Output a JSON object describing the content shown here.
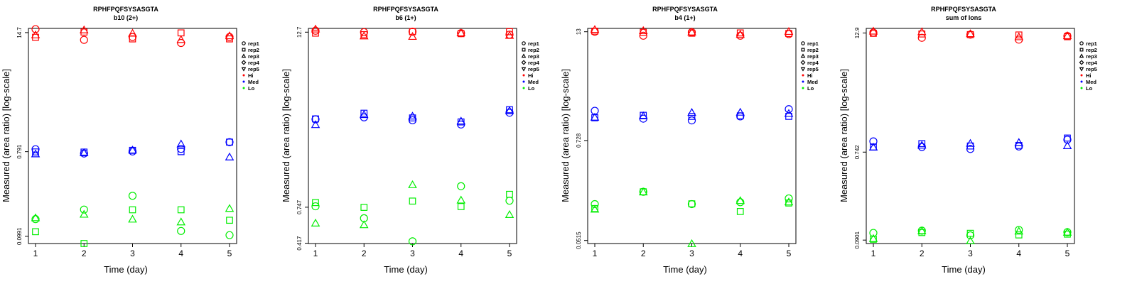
{
  "colors": {
    "Hi": "#ff0000",
    "Med": "#0000ff",
    "Lo": "#00ee00"
  },
  "chart_data": [
    {
      "type": "scatter",
      "title": "RPHFPQFSYSASGTA",
      "subtitle": "b10 (2+)",
      "xlabel": "Time (day)",
      "ylabel": "Measured (area ratio) [log-scale]",
      "x_ticks": [
        "1",
        "2",
        "3",
        "4",
        "5"
      ],
      "y_ticks": [
        "0.0991",
        "0.791",
        "14.7"
      ],
      "ylim": [
        0.083,
        16.3
      ],
      "legend": [
        "rep1",
        "rep2",
        "rep3",
        "rep4",
        "rep5",
        "Hi",
        "Med",
        "Lo"
      ],
      "series": [
        {
          "level": "Hi",
          "rep": "rep1",
          "points": [
            [
              1,
              16.0
            ],
            [
              2,
              12.3
            ],
            [
              3,
              13.2
            ],
            [
              4,
              11.4
            ],
            [
              5,
              13.2
            ]
          ]
        },
        {
          "level": "Hi",
          "rep": "rep2",
          "points": [
            [
              1,
              13.1
            ],
            [
              2,
              14.9
            ],
            [
              3,
              12.6
            ],
            [
              4,
              14.6
            ],
            [
              5,
              12.6
            ]
          ]
        },
        {
          "level": "Hi",
          "rep": "rep3",
          "points": [
            [
              1,
              13.8
            ],
            [
              2,
              15.6
            ],
            [
              3,
              14.4
            ],
            [
              4,
              12.3
            ],
            [
              5,
              13.5
            ]
          ]
        },
        {
          "level": "Med",
          "rep": "rep1",
          "points": [
            [
              1,
              0.84
            ],
            [
              2,
              0.756
            ],
            [
              3,
              0.795
            ],
            [
              4,
              0.847
            ],
            [
              5,
              1.0
            ]
          ]
        },
        {
          "level": "Med",
          "rep": "rep2",
          "points": [
            [
              1,
              0.786
            ],
            [
              2,
              0.783
            ],
            [
              3,
              0.817
            ],
            [
              4,
              0.791
            ],
            [
              5,
              1.0
            ]
          ]
        },
        {
          "level": "Med",
          "rep": "rep3",
          "points": [
            [
              1,
              0.744
            ],
            [
              2,
              0.765
            ],
            [
              3,
              0.818
            ],
            [
              4,
              0.95
            ],
            [
              5,
              0.69
            ]
          ]
        },
        {
          "level": "Lo",
          "rep": "rep1",
          "points": [
            [
              1,
              0.151
            ],
            [
              2,
              0.191
            ],
            [
              3,
              0.268
            ],
            [
              4,
              0.113
            ],
            [
              5,
              0.102
            ]
          ]
        },
        {
          "level": "Lo",
          "rep": "rep2",
          "points": [
            [
              1,
              0.111
            ],
            [
              2,
              0.083
            ],
            [
              3,
              0.19
            ],
            [
              4,
              0.19
            ],
            [
              5,
              0.147
            ]
          ]
        },
        {
          "level": "Lo",
          "rep": "rep3",
          "points": [
            [
              1,
              0.155
            ],
            [
              2,
              0.169
            ],
            [
              3,
              0.15
            ],
            [
              4,
              0.14
            ],
            [
              5,
              0.195
            ]
          ]
        }
      ]
    },
    {
      "type": "scatter",
      "title": "RPHFPQFSYSASGTA",
      "subtitle": "b6 (1+)",
      "xlabel": "Time (day)",
      "ylabel": "Measured (area ratio) [log-scale]",
      "x_ticks": [
        "1",
        "2",
        "3",
        "4",
        "5"
      ],
      "y_ticks": [
        "0.417",
        "0.747",
        "12.7"
      ],
      "ylim": [
        0.415,
        13.5
      ],
      "legend": [
        "rep1",
        "rep2",
        "rep3",
        "rep4",
        "rep5",
        "Hi",
        "Med",
        "Lo"
      ],
      "series": [
        {
          "level": "Hi",
          "rep": "rep1",
          "points": [
            [
              1,
              13.0
            ],
            [
              2,
              12.7
            ],
            [
              3,
              12.8
            ],
            [
              4,
              12.5
            ],
            [
              5,
              12.2
            ]
          ]
        },
        {
          "level": "Hi",
          "rep": "rep2",
          "points": [
            [
              1,
              12.5
            ],
            [
              2,
              12.2
            ],
            [
              3,
              12.8
            ],
            [
              4,
              12.4
            ],
            [
              5,
              12.8
            ]
          ]
        },
        {
          "level": "Hi",
          "rep": "rep3",
          "points": [
            [
              1,
              13.3
            ],
            [
              2,
              11.9
            ],
            [
              3,
              11.8
            ],
            [
              4,
              12.5
            ],
            [
              5,
              12.0
            ]
          ]
        },
        {
          "level": "Med",
          "rep": "rep1",
          "points": [
            [
              1,
              3.1
            ],
            [
              2,
              3.2
            ],
            [
              3,
              3.05
            ],
            [
              4,
              2.85
            ],
            [
              5,
              3.45
            ]
          ]
        },
        {
          "level": "Med",
          "rep": "rep2",
          "points": [
            [
              1,
              3.12
            ],
            [
              2,
              3.42
            ],
            [
              3,
              3.17
            ],
            [
              4,
              2.97
            ],
            [
              5,
              3.62
            ]
          ]
        },
        {
          "level": "Med",
          "rep": "rep3",
          "points": [
            [
              1,
              2.83
            ],
            [
              2,
              3.33
            ],
            [
              3,
              3.25
            ],
            [
              4,
              3.0
            ],
            [
              5,
              3.55
            ]
          ]
        },
        {
          "level": "Lo",
          "rep": "rep1",
          "points": [
            [
              1,
              0.758
            ],
            [
              2,
              0.625
            ],
            [
              3,
              0.43
            ],
            [
              4,
              1.05
            ],
            [
              5,
              0.83
            ]
          ]
        },
        {
          "level": "Lo",
          "rep": "rep2",
          "points": [
            [
              1,
              0.805
            ],
            [
              2,
              0.745
            ],
            [
              3,
              0.825
            ],
            [
              4,
              0.755
            ],
            [
              5,
              0.92
            ]
          ]
        },
        {
          "level": "Lo",
          "rep": "rep3",
          "points": [
            [
              1,
              0.575
            ],
            [
              2,
              0.56
            ],
            [
              3,
              1.07
            ],
            [
              4,
              0.835
            ],
            [
              5,
              0.66
            ]
          ]
        }
      ]
    },
    {
      "type": "scatter",
      "title": "RPHFPQFSYSASGTA",
      "subtitle": "b4 (1+)",
      "xlabel": "Time (day)",
      "ylabel": "Measured (area ratio) [log-scale]",
      "x_ticks": [
        "1",
        "2",
        "3",
        "4",
        "5"
      ],
      "y_ticks": [
        "0.0515",
        "0.728",
        "13"
      ],
      "ylim": [
        0.0475,
        14.2
      ],
      "legend": [
        "rep1",
        "rep2",
        "rep3",
        "rep4",
        "rep5",
        "Hi",
        "Med",
        "Lo"
      ],
      "series": [
        {
          "level": "Hi",
          "rep": "rep1",
          "points": [
            [
              1,
              13.0
            ],
            [
              2,
              11.7
            ],
            [
              3,
              12.8
            ],
            [
              4,
              11.7
            ],
            [
              5,
              12.2
            ]
          ]
        },
        {
          "level": "Hi",
          "rep": "rep2",
          "points": [
            [
              1,
              13.2
            ],
            [
              2,
              12.8
            ],
            [
              3,
              12.5
            ],
            [
              4,
              12.6
            ],
            [
              5,
              12.4
            ]
          ]
        },
        {
          "level": "Hi",
          "rep": "rep3",
          "points": [
            [
              1,
              13.7
            ],
            [
              2,
              13.3
            ],
            [
              3,
              12.8
            ],
            [
              4,
              12.0
            ],
            [
              5,
              13.0
            ]
          ]
        },
        {
          "level": "Med",
          "rep": "rep1",
          "points": [
            [
              1,
              1.6
            ],
            [
              2,
              1.3
            ],
            [
              3,
              1.24
            ],
            [
              4,
              1.38
            ],
            [
              5,
              1.67
            ]
          ]
        },
        {
          "level": "Med",
          "rep": "rep2",
          "points": [
            [
              1,
              1.33
            ],
            [
              2,
              1.42
            ],
            [
              3,
              1.38
            ],
            [
              4,
              1.4
            ],
            [
              5,
              1.38
            ]
          ]
        },
        {
          "level": "Med",
          "rep": "rep3",
          "points": [
            [
              1,
              1.34
            ],
            [
              2,
              1.39
            ],
            [
              3,
              1.52
            ],
            [
              4,
              1.53
            ],
            [
              5,
              1.48
            ]
          ]
        },
        {
          "level": "Lo",
          "rep": "rep1",
          "points": [
            [
              1,
              0.135
            ],
            [
              2,
              0.187
            ],
            [
              3,
              0.135
            ],
            [
              4,
              0.142
            ],
            [
              5,
              0.157
            ]
          ]
        },
        {
          "level": "Lo",
          "rep": "rep2",
          "points": [
            [
              1,
              0.12
            ],
            [
              2,
              0.187
            ],
            [
              3,
              0.136
            ],
            [
              4,
              0.111
            ],
            [
              5,
              0.139
            ]
          ]
        },
        {
          "level": "Lo",
          "rep": "rep3",
          "points": [
            [
              1,
              0.117
            ],
            [
              2,
              0.185
            ],
            [
              3,
              0.047
            ],
            [
              4,
              0.147
            ],
            [
              5,
              0.142
            ]
          ]
        }
      ]
    },
    {
      "type": "scatter",
      "title": "RPHFPQFSYSASGTA",
      "subtitle": "sum of Ions",
      "xlabel": "Time (day)",
      "ylabel": "Measured (area ratio) [log-scale]",
      "x_ticks": [
        "1",
        "2",
        "3",
        "4",
        "5"
      ],
      "y_ticks": [
        "0.0901",
        "0.742",
        "12.9"
      ],
      "ylim": [
        0.083,
        14.4
      ],
      "legend": [
        "rep1",
        "rep2",
        "rep3",
        "rep4",
        "rep5",
        "Hi",
        "Med",
        "Lo"
      ],
      "series": [
        {
          "level": "Hi",
          "rep": "rep1",
          "points": [
            [
              1,
              13.0
            ],
            [
              2,
              11.5
            ],
            [
              3,
              12.4
            ],
            [
              4,
              11.0
            ],
            [
              5,
              12.0
            ]
          ]
        },
        {
          "level": "Hi",
          "rep": "rep2",
          "points": [
            [
              1,
              12.8
            ],
            [
              2,
              12.6
            ],
            [
              3,
              12.4
            ],
            [
              4,
              12.3
            ],
            [
              5,
              11.8
            ]
          ]
        },
        {
          "level": "Hi",
          "rep": "rep3",
          "points": [
            [
              1,
              13.4
            ],
            [
              2,
              13.2
            ],
            [
              3,
              12.6
            ],
            [
              4,
              11.7
            ],
            [
              5,
              12.0
            ]
          ]
        },
        {
          "level": "Med",
          "rep": "rep1",
          "points": [
            [
              1,
              0.96
            ],
            [
              2,
              0.84
            ],
            [
              3,
              0.8
            ],
            [
              4,
              0.85
            ],
            [
              5,
              1.0
            ]
          ]
        },
        {
          "level": "Med",
          "rep": "rep2",
          "points": [
            [
              1,
              0.84
            ],
            [
              2,
              0.91
            ],
            [
              3,
              0.86
            ],
            [
              4,
              0.87
            ],
            [
              5,
              1.04
            ]
          ]
        },
        {
          "level": "Med",
          "rep": "rep3",
          "points": [
            [
              1,
              0.83
            ],
            [
              2,
              0.87
            ],
            [
              3,
              0.91
            ],
            [
              4,
              0.93
            ],
            [
              5,
              0.86
            ]
          ]
        },
        {
          "level": "Lo",
          "rep": "rep1",
          "points": [
            [
              1,
              0.107
            ],
            [
              2,
              0.113
            ],
            [
              3,
              0.101
            ],
            [
              4,
              0.115
            ],
            [
              5,
              0.109
            ]
          ]
        },
        {
          "level": "Lo",
          "rep": "rep2",
          "points": [
            [
              1,
              0.092
            ],
            [
              2,
              0.108
            ],
            [
              3,
              0.106
            ],
            [
              4,
              0.102
            ],
            [
              5,
              0.104
            ]
          ]
        },
        {
          "level": "Lo",
          "rep": "rep3",
          "points": [
            [
              1,
              0.093
            ],
            [
              2,
              0.112
            ],
            [
              3,
              0.088
            ],
            [
              4,
              0.111
            ],
            [
              5,
              0.108
            ]
          ]
        }
      ]
    }
  ]
}
